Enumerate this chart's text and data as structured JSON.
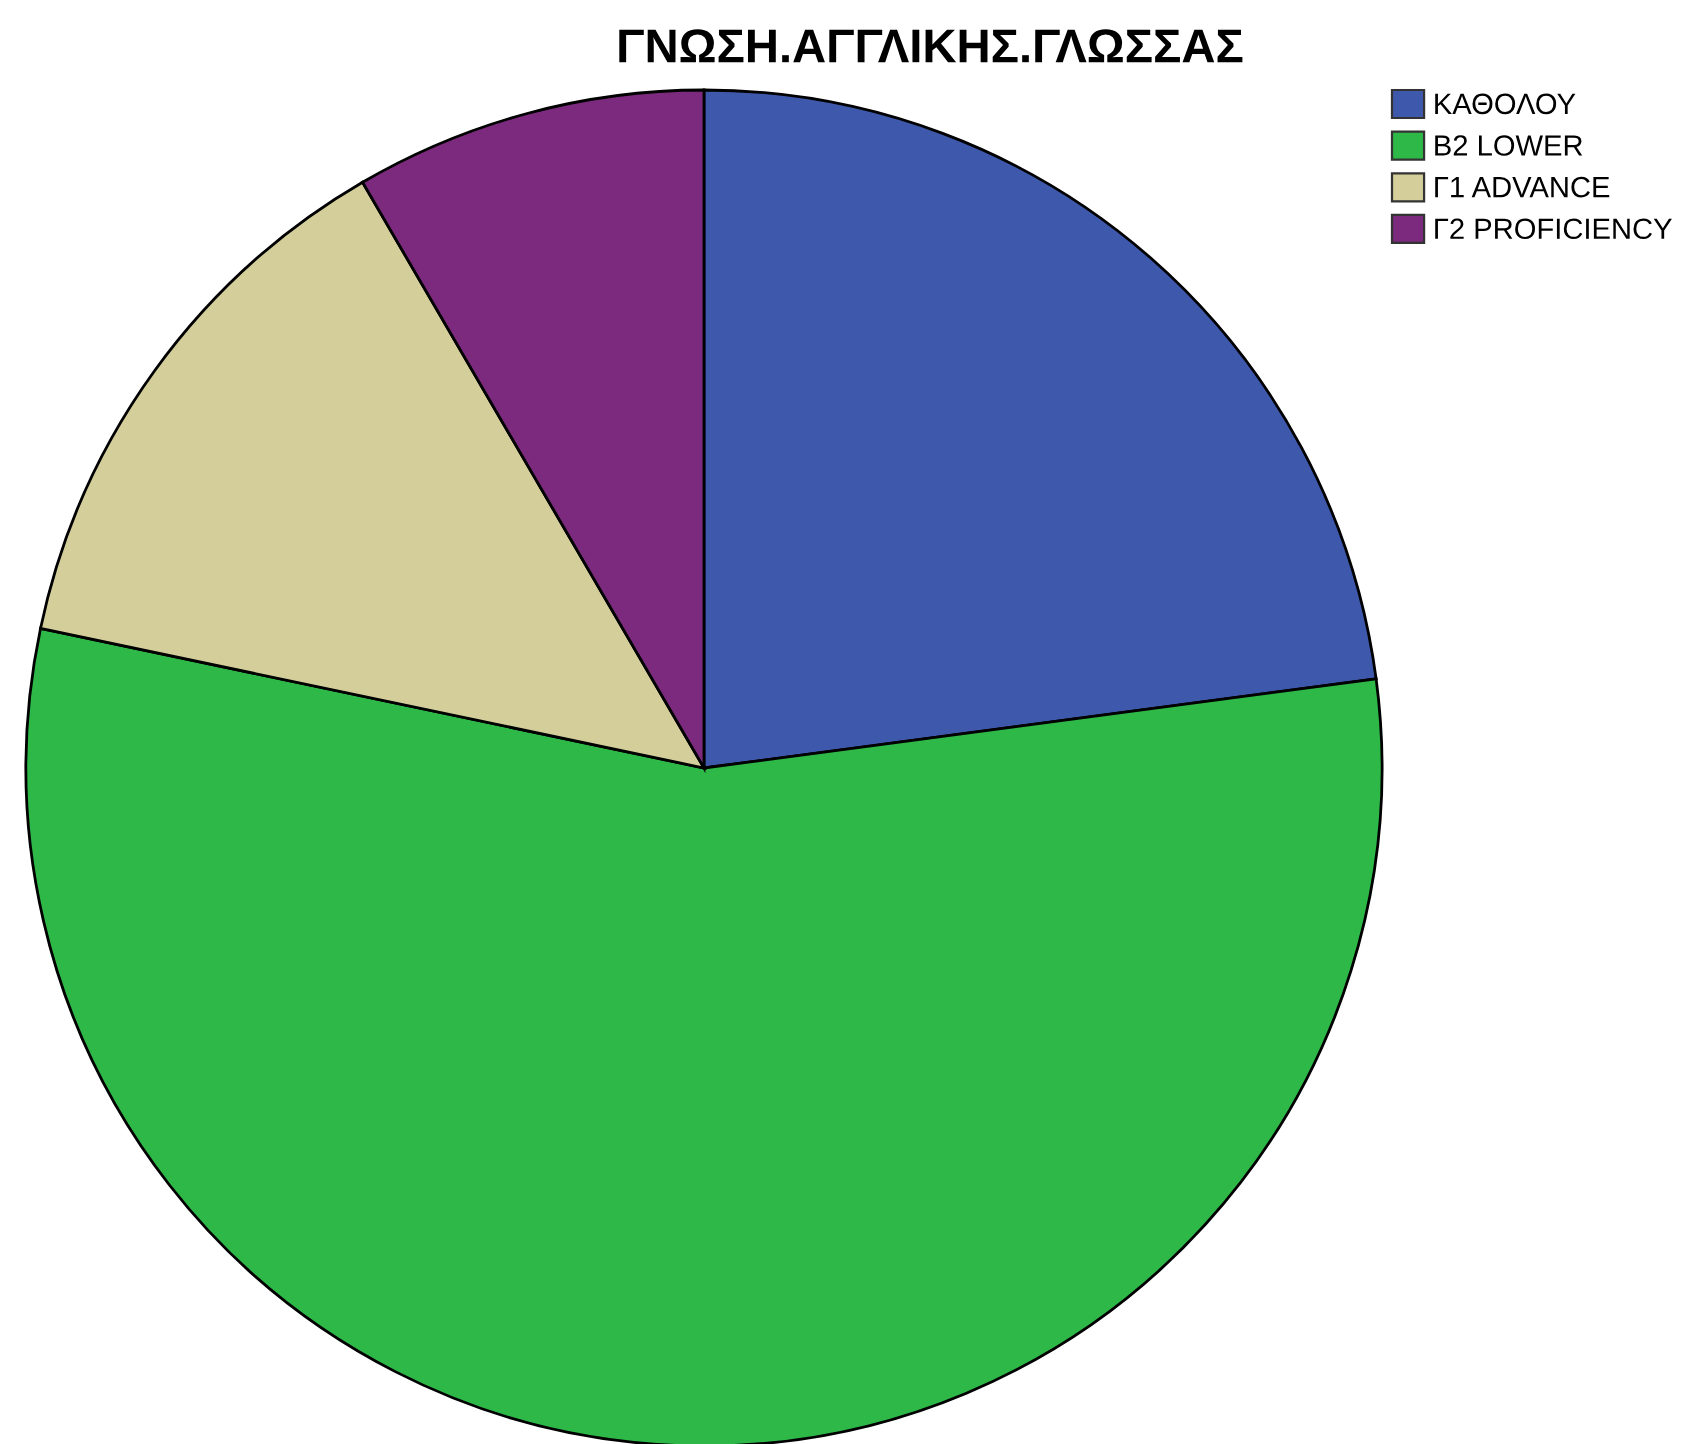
{
  "chart_data": {
    "type": "pie",
    "title": "ΓΝΩΣΗ.ΑΓΓΛΙΚΗΣ.ΓΛΩΣΣΑΣ",
    "categories": [
      "ΚΑΘΟΛΟΥ",
      "B2 LOWER",
      "Γ1 ADVANCE",
      "Γ2 PROFICIENCY"
    ],
    "values": [
      22.9,
      55.4,
      13.3,
      8.4
    ],
    "colors": [
      "#3e58ac",
      "#2eb848",
      "#d4ce9a",
      "#7b2a7d"
    ],
    "legend": "top right"
  }
}
